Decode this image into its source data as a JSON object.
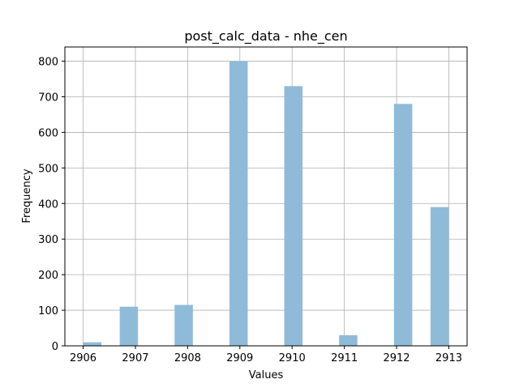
{
  "chart_data": {
    "type": "bar",
    "title": "post_calc_data - nhe_cen",
    "xlabel": "Values",
    "ylabel": "Frequency",
    "xlim": [
      2905.65,
      2913.35
    ],
    "ylim": [
      0,
      840
    ],
    "xticks": [
      2906,
      2907,
      2908,
      2909,
      2910,
      2911,
      2912,
      2913
    ],
    "yticks": [
      0,
      100,
      200,
      300,
      400,
      500,
      600,
      700,
      800
    ],
    "grid": true,
    "bar_color": "#8fbbd9",
    "bins": [
      {
        "start": 2906.0,
        "end": 2906.35,
        "value": 10
      },
      {
        "start": 2906.7,
        "end": 2907.05,
        "value": 110
      },
      {
        "start": 2907.75,
        "end": 2908.1,
        "value": 115
      },
      {
        "start": 2908.8,
        "end": 2909.15,
        "value": 800
      },
      {
        "start": 2909.85,
        "end": 2910.2,
        "value": 730
      },
      {
        "start": 2910.9,
        "end": 2911.25,
        "value": 30
      },
      {
        "start": 2911.95,
        "end": 2912.3,
        "value": 680
      },
      {
        "start": 2912.65,
        "end": 2913.0,
        "value": 390
      }
    ]
  }
}
